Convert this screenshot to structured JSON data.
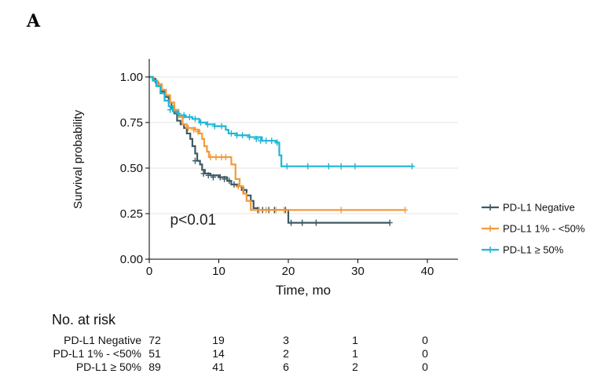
{
  "panel_label": "A",
  "chart_data": {
    "type": "line",
    "subtype": "kaplan-meier",
    "xlabel": "Time, mo",
    "ylabel": "Survival probability",
    "xlim": [
      0,
      45
    ],
    "ylim": [
      0,
      1.08
    ],
    "x_ticks": [
      0,
      10,
      20,
      30,
      40
    ],
    "x_tick_labels": [
      "0",
      "10",
      "20",
      "30",
      "40"
    ],
    "y_ticks": [
      0,
      0.25,
      0.5,
      0.75,
      1.0
    ],
    "y_tick_labels": [
      "0.00",
      "0.25",
      "0.50",
      "0.75",
      "1.00"
    ],
    "grid": "horizontal",
    "annotation": {
      "text": "p<0.01",
      "x": 3,
      "y": 0.19
    },
    "legend_position": "right",
    "series": [
      {
        "name": "PD-L1 Negative",
        "color": "#3d5a63",
        "steps": [
          [
            0,
            1.0
          ],
          [
            0.5,
            0.99
          ],
          [
            0.9,
            0.97
          ],
          [
            1.3,
            0.95
          ],
          [
            1.8,
            0.92
          ],
          [
            2.3,
            0.89
          ],
          [
            2.8,
            0.86
          ],
          [
            3.2,
            0.83
          ],
          [
            3.6,
            0.8
          ],
          [
            4.0,
            0.76
          ],
          [
            4.5,
            0.74
          ],
          [
            5.0,
            0.72
          ],
          [
            5.4,
            0.69
          ],
          [
            5.9,
            0.66
          ],
          [
            6.2,
            0.62
          ],
          [
            6.6,
            0.58
          ],
          [
            6.9,
            0.54
          ],
          [
            7.3,
            0.52
          ],
          [
            7.6,
            0.49
          ],
          [
            8.0,
            0.47
          ],
          [
            8.8,
            0.46
          ],
          [
            10.0,
            0.45
          ],
          [
            11.2,
            0.43
          ],
          [
            11.8,
            0.41
          ],
          [
            12.6,
            0.4
          ],
          [
            13.3,
            0.38
          ],
          [
            14.0,
            0.35
          ],
          [
            14.6,
            0.32
          ],
          [
            15.0,
            0.28
          ],
          [
            15.6,
            0.27
          ],
          [
            20.0,
            0.2
          ],
          [
            34.6,
            0.2
          ]
        ],
        "censor": [
          [
            6.6,
            0.54
          ],
          [
            7.8,
            0.47
          ],
          [
            8.5,
            0.46
          ],
          [
            9.2,
            0.45
          ],
          [
            10.2,
            0.45
          ],
          [
            10.8,
            0.44
          ],
          [
            11.5,
            0.43
          ],
          [
            12.2,
            0.41
          ],
          [
            13.6,
            0.38
          ],
          [
            15.6,
            0.27
          ],
          [
            16.3,
            0.27
          ],
          [
            17.2,
            0.27
          ],
          [
            18.0,
            0.27
          ],
          [
            19.6,
            0.27
          ],
          [
            20.4,
            0.2
          ],
          [
            22.0,
            0.2
          ],
          [
            24.0,
            0.2
          ],
          [
            34.6,
            0.2
          ]
        ]
      },
      {
        "name": "PD-L1 1% - <50%",
        "color": "#f49a3a",
        "steps": [
          [
            0,
            1.0
          ],
          [
            0.6,
            0.98
          ],
          [
            1.2,
            0.96
          ],
          [
            1.8,
            0.93
          ],
          [
            2.4,
            0.9
          ],
          [
            3.0,
            0.86
          ],
          [
            3.6,
            0.82
          ],
          [
            4.2,
            0.78
          ],
          [
            4.8,
            0.74
          ],
          [
            5.4,
            0.72
          ],
          [
            6.6,
            0.71
          ],
          [
            7.2,
            0.69
          ],
          [
            7.6,
            0.66
          ],
          [
            7.9,
            0.62
          ],
          [
            8.3,
            0.59
          ],
          [
            8.6,
            0.56
          ],
          [
            11.2,
            0.56
          ],
          [
            11.8,
            0.52
          ],
          [
            12.4,
            0.44
          ],
          [
            13.0,
            0.4
          ],
          [
            13.5,
            0.36
          ],
          [
            14.0,
            0.32
          ],
          [
            14.6,
            0.27
          ],
          [
            36.8,
            0.27
          ]
        ],
        "censor": [
          [
            5.6,
            0.72
          ],
          [
            6.4,
            0.71
          ],
          [
            7.0,
            0.7
          ],
          [
            8.8,
            0.56
          ],
          [
            9.6,
            0.56
          ],
          [
            10.4,
            0.56
          ],
          [
            11.0,
            0.56
          ],
          [
            12.8,
            0.4
          ],
          [
            15.8,
            0.27
          ],
          [
            16.8,
            0.27
          ],
          [
            18.2,
            0.27
          ],
          [
            19.4,
            0.27
          ],
          [
            27.6,
            0.27
          ],
          [
            36.8,
            0.27
          ]
        ]
      },
      {
        "name": "PD-L1 ≥ 50%",
        "color": "#1fb6d6",
        "steps": [
          [
            0,
            1.0
          ],
          [
            0.5,
            0.98
          ],
          [
            1.0,
            0.95
          ],
          [
            1.6,
            0.91
          ],
          [
            2.2,
            0.87
          ],
          [
            2.8,
            0.84
          ],
          [
            3.4,
            0.81
          ],
          [
            4.2,
            0.79
          ],
          [
            5.2,
            0.78
          ],
          [
            6.2,
            0.77
          ],
          [
            7.2,
            0.75
          ],
          [
            8.2,
            0.74
          ],
          [
            9.4,
            0.73
          ],
          [
            11.0,
            0.71
          ],
          [
            11.4,
            0.69
          ],
          [
            12.6,
            0.68
          ],
          [
            14.4,
            0.67
          ],
          [
            16.2,
            0.65
          ],
          [
            18.2,
            0.64
          ],
          [
            18.7,
            0.57
          ],
          [
            19.0,
            0.51
          ],
          [
            38.0,
            0.51
          ]
        ],
        "censor": [
          [
            3.0,
            0.82
          ],
          [
            4.2,
            0.8
          ],
          [
            5.0,
            0.79
          ],
          [
            5.8,
            0.78
          ],
          [
            6.6,
            0.77
          ],
          [
            7.4,
            0.75
          ],
          [
            8.4,
            0.74
          ],
          [
            9.4,
            0.73
          ],
          [
            10.4,
            0.73
          ],
          [
            11.8,
            0.69
          ],
          [
            12.6,
            0.68
          ],
          [
            13.4,
            0.68
          ],
          [
            14.4,
            0.67
          ],
          [
            15.4,
            0.66
          ],
          [
            16.0,
            0.65
          ],
          [
            16.8,
            0.65
          ],
          [
            17.6,
            0.65
          ],
          [
            18.4,
            0.64
          ],
          [
            19.8,
            0.51
          ],
          [
            22.8,
            0.51
          ],
          [
            25.8,
            0.51
          ],
          [
            27.6,
            0.51
          ],
          [
            29.6,
            0.51
          ],
          [
            37.8,
            0.51
          ]
        ]
      }
    ]
  },
  "risk_table": {
    "title": "No. at risk",
    "times": [
      0,
      10,
      20,
      30,
      40
    ],
    "rows": [
      {
        "label": "PD-L1 Negative",
        "counts": [
          "72",
          "19",
          "3",
          "1",
          "0"
        ]
      },
      {
        "label": "PD-L1 1% - <50%",
        "counts": [
          "51",
          "14",
          "2",
          "1",
          "0"
        ]
      },
      {
        "label": "PD-L1 ≥ 50%",
        "counts": [
          "89",
          "41",
          "6",
          "2",
          "0"
        ]
      }
    ]
  }
}
